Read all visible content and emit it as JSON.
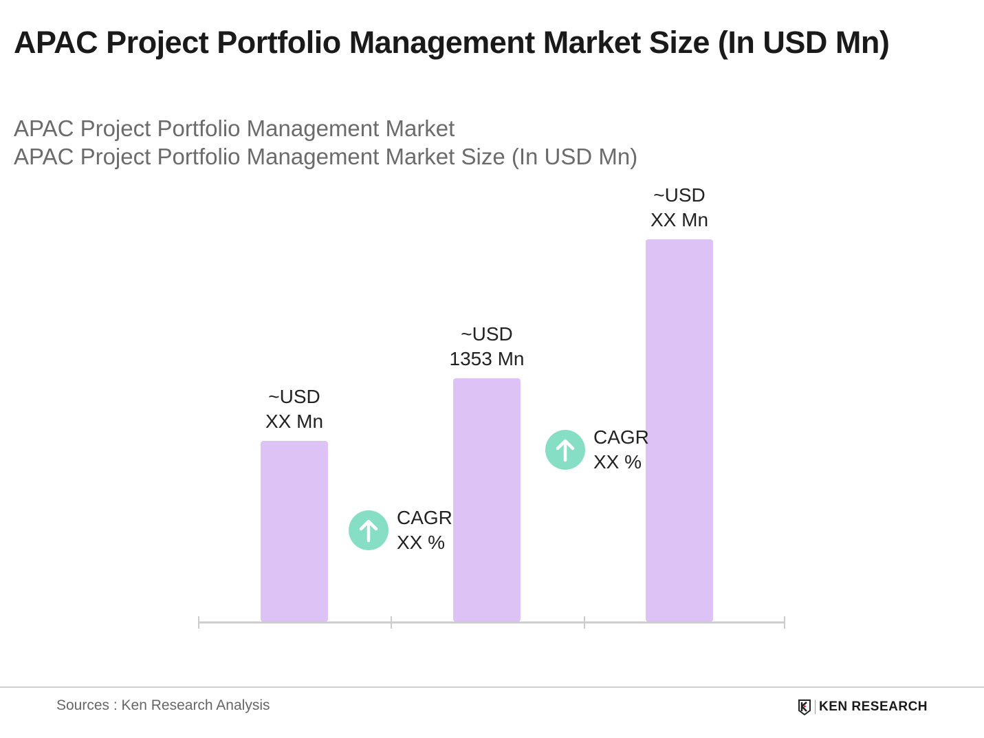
{
  "title": "APAC Project Portfolio Management Market Size (In USD Mn)",
  "subtitle_line1": "APAC Project Portfolio Management Market",
  "subtitle_line2": "APAC Project Portfolio Management Market Size (In USD Mn)",
  "chart_data": {
    "type": "bar",
    "categories": [
      "",
      "",
      ""
    ],
    "values": [
      1005,
      1353,
      2125
    ],
    "data_labels": [
      {
        "line1": "~USD",
        "line2": "XX Mn"
      },
      {
        "line1": "~USD",
        "line2": "1353 Mn"
      },
      {
        "line1": "~USD",
        "line2": "XX Mn"
      }
    ],
    "annotations": [
      {
        "label": "CAGR",
        "value": "XX %",
        "icon": "arrow-up-icon"
      },
      {
        "label": "CAGR",
        "value": "XX %",
        "icon": "arrow-up-icon"
      }
    ],
    "bar_color": "#dcc2f5",
    "cagr_color": "#86dfc4",
    "axis_color": "#cccccc",
    "grid": false,
    "yaxis_visible": false
  },
  "footer": {
    "source": "Sources : Ken Research Analysis",
    "logo_text": "KEN RESEARCH"
  }
}
